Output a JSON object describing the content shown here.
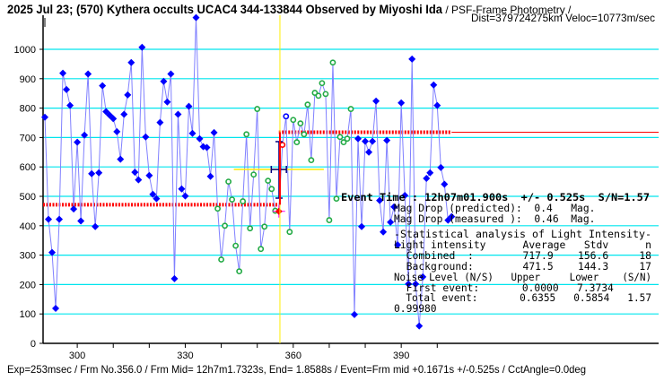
{
  "title": {
    "main": "2025 Jul 23; (570) Kythera occults UCAC4 344-133844 Observed by Miyoshi Ida",
    "suffix": " / PSF-Frame Photometry /",
    "line2": "Dist=379724275km Veloc=10773m/sec"
  },
  "footer": "Exp=253msec / Frm No.356.0 / Frm Mid= 12h7m1.7323s,  End= 1.8588s / Event=Frm mid +0.1671s +/-0.525s / CctAngle=0.0deg",
  "results": {
    "event_time": "Event Time : 12h07m01.900s  +/- 0.525s  S/N=1.57",
    "mag_pred": "Mag Drop (predicted):  0.4   Mag.",
    "mag_meas": "Mag Drop (measured ):  0.46  Mag.",
    "stat_header": "-Statistical analysis of Light Intensity-",
    "col_header": "Light intensity      Average   Stdv      n",
    "combined": "  Combined  :        717.9    156.6     18",
    "background": "  Background:        471.5    144.3     17",
    "noise_header": "Noise Level (N/S)   Upper     Lower    (S/N)",
    "first_event": "  First event:       0.0000   7.3734",
    "total_event": "  Total event:       0.6355   0.5854   1.57",
    "corr": "0.99980"
  },
  "chart_data": {
    "type": "line",
    "xlabel": "",
    "ylabel": "",
    "xlim": [
      290.5,
      461.5
    ],
    "ylim": [
      0,
      1100
    ],
    "x_ticks": [
      300,
      330,
      360,
      390
    ],
    "y_ticks": [
      0,
      100,
      200,
      300,
      400,
      500,
      600,
      700,
      800,
      900,
      1000
    ],
    "grid": "horizontal",
    "colors": {
      "line": "#8080ff",
      "point": "#0000ff",
      "analysis_point": "#22aa44",
      "level": "#ff0000",
      "grid": "#00e5ee",
      "event_line": "#ffee00",
      "error_bar": "#000080"
    },
    "event_frame": 356,
    "levels": {
      "before": 471.5,
      "after": 717.9
    },
    "frames_start": 291,
    "values": [
      769,
      422,
      309,
      119,
      422,
      919,
      863,
      809,
      457,
      684,
      416,
      708,
      916,
      577,
      397,
      580,
      876,
      788,
      776,
      764,
      720,
      626,
      779,
      845,
      955,
      582,
      556,
      1007,
      702,
      571,
      507,
      492,
      751,
      891,
      821,
      916,
      220,
      779,
      525,
      501,
      806,
      714,
      1108,
      696,
      669,
      666,
      568,
      717,
      458,
      285,
      400,
      550,
      489,
      332,
      245,
      483,
      711,
      391,
      574,
      797,
      321,
      397,
      553,
      525,
      451,
      449,
      675,
      772,
      379,
      760,
      684,
      748,
      711,
      812,
      623,
      852,
      842,
      885,
      848,
      419,
      955,
      492,
      702,
      684,
      696,
      797,
      98,
      696,
      397,
      687,
      650,
      687,
      824,
      486,
      379,
      690,
      412,
      464,
      335,
      818,
      503,
      202,
      967,
      202,
      59,
      226,
      561,
      580,
      879,
      809,
      598,
      541,
      419,
      431
    ],
    "background_frames": [
      339,
      355
    ],
    "combined_frames": [
      359,
      376
    ]
  }
}
